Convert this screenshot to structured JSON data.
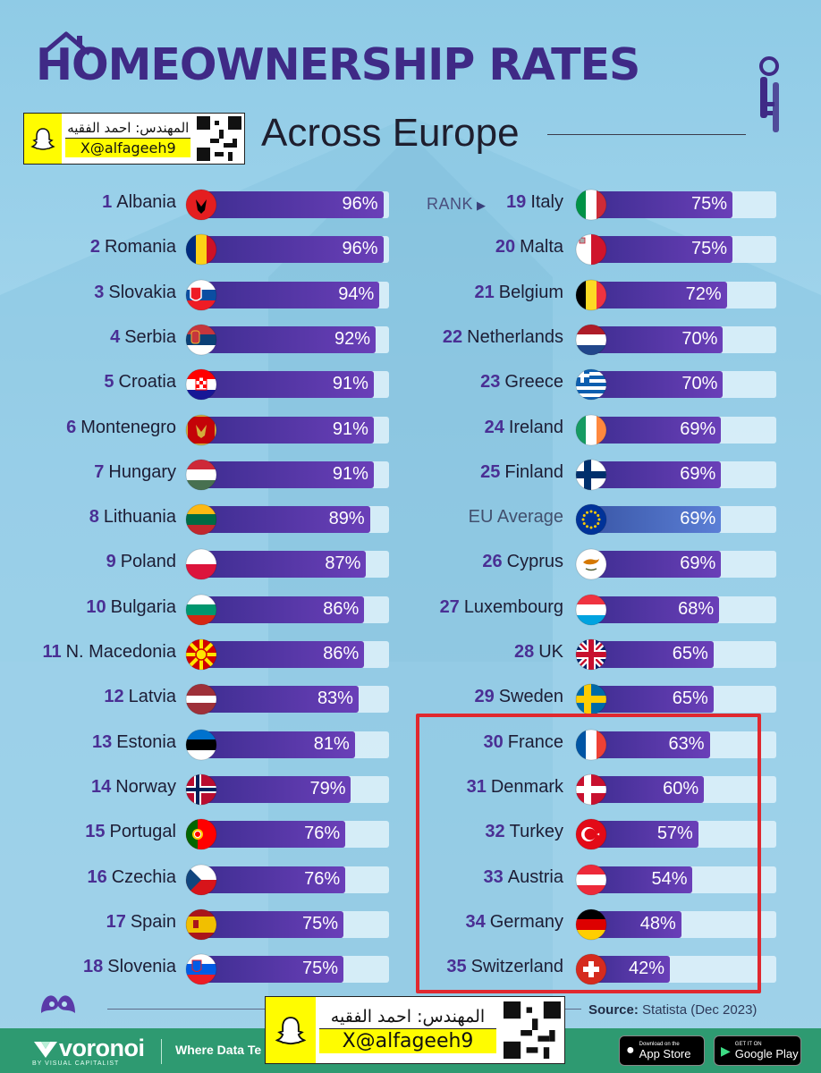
{
  "header": {
    "title": "HOMEOWNERSHIP RATES",
    "subtitle": "Across Europe"
  },
  "rank_hint": "RANK",
  "watermark": {
    "arabic": "المهندس: احمد الفقيه",
    "handle": "X@alfageeh9"
  },
  "chart_data": {
    "type": "bar",
    "title": "HOMEOWNERSHIP RATES",
    "subtitle": "Across Europe",
    "unit": "%",
    "xlim": [
      0,
      100
    ],
    "series": [
      {
        "rank": "1",
        "name": "Albania",
        "value": 96,
        "label": "96%",
        "flag": "albania-flag"
      },
      {
        "rank": "2",
        "name": "Romania",
        "value": 96,
        "label": "96%",
        "flag": "romania-flag"
      },
      {
        "rank": "3",
        "name": "Slovakia",
        "value": 94,
        "label": "94%",
        "flag": "slovakia-flag"
      },
      {
        "rank": "4",
        "name": "Serbia",
        "value": 92,
        "label": "92%",
        "flag": "serbia-flag"
      },
      {
        "rank": "5",
        "name": "Croatia",
        "value": 91,
        "label": "91%",
        "flag": "croatia-flag"
      },
      {
        "rank": "6",
        "name": "Montenegro",
        "value": 91,
        "label": "91%",
        "flag": "montenegro-flag"
      },
      {
        "rank": "7",
        "name": "Hungary",
        "value": 91,
        "label": "91%",
        "flag": "hungary-flag"
      },
      {
        "rank": "8",
        "name": "Lithuania",
        "value": 89,
        "label": "89%",
        "flag": "lithuania-flag"
      },
      {
        "rank": "9",
        "name": "Poland",
        "value": 87,
        "label": "87%",
        "flag": "poland-flag"
      },
      {
        "rank": "10",
        "name": "Bulgaria",
        "value": 86,
        "label": "86%",
        "flag": "bulgaria-flag"
      },
      {
        "rank": "11",
        "name": "N. Macedonia",
        "value": 86,
        "label": "86%",
        "flag": "north-macedonia-flag"
      },
      {
        "rank": "12",
        "name": "Latvia",
        "value": 83,
        "label": "83%",
        "flag": "latvia-flag"
      },
      {
        "rank": "13",
        "name": "Estonia",
        "value": 81,
        "label": "81%",
        "flag": "estonia-flag"
      },
      {
        "rank": "14",
        "name": "Norway",
        "value": 79,
        "label": "79%",
        "flag": "norway-flag"
      },
      {
        "rank": "15",
        "name": "Portugal",
        "value": 76,
        "label": "76%",
        "flag": "portugal-flag"
      },
      {
        "rank": "16",
        "name": "Czechia",
        "value": 76,
        "label": "76%",
        "flag": "czechia-flag"
      },
      {
        "rank": "17",
        "name": "Spain",
        "value": 75,
        "label": "75%",
        "flag": "spain-flag"
      },
      {
        "rank": "18",
        "name": "Slovenia",
        "value": 75,
        "label": "75%",
        "flag": "slovenia-flag"
      },
      {
        "rank": "19",
        "name": "Italy",
        "value": 75,
        "label": "75%",
        "flag": "italy-flag"
      },
      {
        "rank": "20",
        "name": "Malta",
        "value": 75,
        "label": "75%",
        "flag": "malta-flag"
      },
      {
        "rank": "21",
        "name": "Belgium",
        "value": 72,
        "label": "72%",
        "flag": "belgium-flag"
      },
      {
        "rank": "22",
        "name": "Netherlands",
        "value": 70,
        "label": "70%",
        "flag": "netherlands-flag"
      },
      {
        "rank": "23",
        "name": "Greece",
        "value": 70,
        "label": "70%",
        "flag": "greece-flag"
      },
      {
        "rank": "24",
        "name": "Ireland",
        "value": 69,
        "label": "69%",
        "flag": "ireland-flag"
      },
      {
        "rank": "25",
        "name": "Finland",
        "value": 69,
        "label": "69%",
        "flag": "finland-flag"
      },
      {
        "rank": "",
        "name": "EU Average",
        "value": 69,
        "label": "69%",
        "flag": "eu-flag",
        "highlight": "eu"
      },
      {
        "rank": "26",
        "name": "Cyprus",
        "value": 69,
        "label": "69%",
        "flag": "cyprus-flag"
      },
      {
        "rank": "27",
        "name": "Luxembourg",
        "value": 68,
        "label": "68%",
        "flag": "luxembourg-flag"
      },
      {
        "rank": "28",
        "name": "UK",
        "value": 65,
        "label": "65%",
        "flag": "uk-flag"
      },
      {
        "rank": "29",
        "name": "Sweden",
        "value": 65,
        "label": "65%",
        "flag": "sweden-flag"
      },
      {
        "rank": "30",
        "name": "France",
        "value": 63,
        "label": "63%",
        "flag": "france-flag"
      },
      {
        "rank": "31",
        "name": "Denmark",
        "value": 60,
        "label": "60%",
        "flag": "denmark-flag"
      },
      {
        "rank": "32",
        "name": "Turkey",
        "value": 57,
        "label": "57%",
        "flag": "turkey-flag"
      },
      {
        "rank": "33",
        "name": "Austria",
        "value": 54,
        "label": "54%",
        "flag": "austria-flag"
      },
      {
        "rank": "34",
        "name": "Germany",
        "value": 48,
        "label": "48%",
        "flag": "germany-flag"
      },
      {
        "rank": "35",
        "name": "Switzerland",
        "value": 42,
        "label": "42%",
        "flag": "switzerland-flag"
      }
    ]
  },
  "footer": {
    "source_label": "Source:",
    "source_text": "Statista (Dec 2023)",
    "brand": "voronoi",
    "brand_by": "BY VISUAL CAPITALIST",
    "tagline": "Where Data Te",
    "app_store_small": "Download on the",
    "app_store_big": "App Store",
    "google_small": "GET IT ON",
    "google_big": "Google Play"
  },
  "colors": {
    "title": "#3f2a86",
    "bar": "#5a3aa8",
    "eu_bar": "#4a6cc4",
    "highlight_box": "#e0282f",
    "footer_bar": "#2e9a71"
  }
}
